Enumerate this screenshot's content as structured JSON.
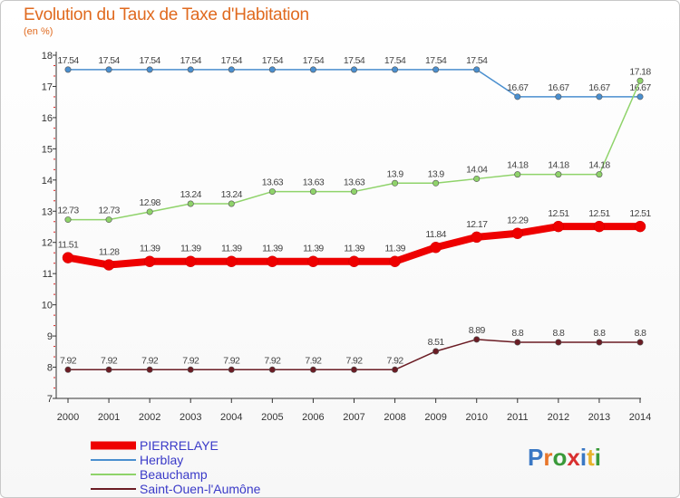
{
  "title": "Evolution du Taux de Taxe d'Habitation",
  "subtitle": "(en %)",
  "logo": {
    "text": "Proxiti",
    "letters": [
      {
        "ch": "P",
        "color": "#3a78c4"
      },
      {
        "ch": "r",
        "color": "#e8762a"
      },
      {
        "ch": "o",
        "color": "#3a9a3a"
      },
      {
        "ch": "x",
        "color": "#d93030"
      },
      {
        "ch": "i",
        "color": "#3a78c4"
      },
      {
        "ch": "t",
        "color": "#e8b22a"
      },
      {
        "ch": "i",
        "color": "#3a9a3a"
      }
    ]
  },
  "chart_data": {
    "type": "line",
    "x": [
      "2000",
      "2001",
      "2002",
      "2003",
      "2004",
      "2005",
      "2006",
      "2007",
      "2008",
      "2009",
      "2010",
      "2011",
      "2012",
      "2013",
      "2014"
    ],
    "ylim": [
      7,
      18
    ],
    "yticks": [
      "7",
      "8",
      "9",
      "10",
      "11",
      "12",
      "13",
      "14",
      "15",
      "16",
      "17",
      "18"
    ],
    "grid": false,
    "legend_position": "bottom-left",
    "series": [
      {
        "name": "Herblay",
        "color": "#4a8fcf",
        "values": [
          17.54,
          17.54,
          17.54,
          17.54,
          17.54,
          17.54,
          17.54,
          17.54,
          17.54,
          17.54,
          17.54,
          16.67,
          16.67,
          16.67,
          16.67
        ],
        "labels": [
          "17.54",
          "17.54",
          "17.54",
          "17.54",
          "17.54",
          "17.54",
          "17.54",
          "17.54",
          "17.54",
          "17.54",
          "17.54",
          "16.67",
          "16.67",
          "16.67",
          "16.67"
        ]
      },
      {
        "name": "Beauchamp",
        "color": "#8fd36a",
        "values": [
          12.73,
          12.73,
          12.98,
          13.24,
          13.24,
          13.63,
          13.63,
          13.63,
          13.9,
          13.9,
          14.04,
          14.18,
          14.18,
          14.18,
          17.18
        ],
        "labels": [
          "12.73",
          "12.73",
          "12.98",
          "13.24",
          "13.24",
          "13.63",
          "13.63",
          "13.63",
          "13.9",
          "13.9",
          "14.04",
          "14.18",
          "14.18",
          "14.18",
          "17.18"
        ]
      },
      {
        "name": "PIERRELAYE",
        "color": "#ee0000",
        "values": [
          11.51,
          11.28,
          11.39,
          11.39,
          11.39,
          11.39,
          11.39,
          11.39,
          11.39,
          11.84,
          12.17,
          12.29,
          12.51,
          12.51,
          12.51
        ],
        "labels": [
          "11.51",
          "11.28",
          "11.39",
          "11.39",
          "11.39",
          "11.39",
          "11.39",
          "11.39",
          "11.39",
          "11.84",
          "12.17",
          "12.29",
          "12.51",
          "12.51",
          "12.51"
        ]
      },
      {
        "name": "Saint-Ouen-l'Aumône",
        "color": "#6b1c24",
        "values": [
          7.92,
          7.92,
          7.92,
          7.92,
          7.92,
          7.92,
          7.92,
          7.92,
          7.92,
          8.51,
          8.89,
          8.8,
          8.8,
          8.8,
          8.8
        ],
        "labels": [
          "7.92",
          "7.92",
          "7.92",
          "7.92",
          "7.92",
          "7.92",
          "7.92",
          "7.92",
          "7.92",
          "8.51",
          "8.89",
          "8.8",
          "8.8",
          "8.8",
          "8.8"
        ]
      }
    ],
    "legend": [
      {
        "name": "PIERRELAYE",
        "color": "#ee0000"
      },
      {
        "name": "Herblay",
        "color": "#4a8fcf"
      },
      {
        "name": "Beauchamp",
        "color": "#8fd36a"
      },
      {
        "name": "Saint-Ouen-l'Aumône",
        "color": "#6b1c24"
      }
    ],
    "legend_text_color": "#3a3ac8"
  }
}
